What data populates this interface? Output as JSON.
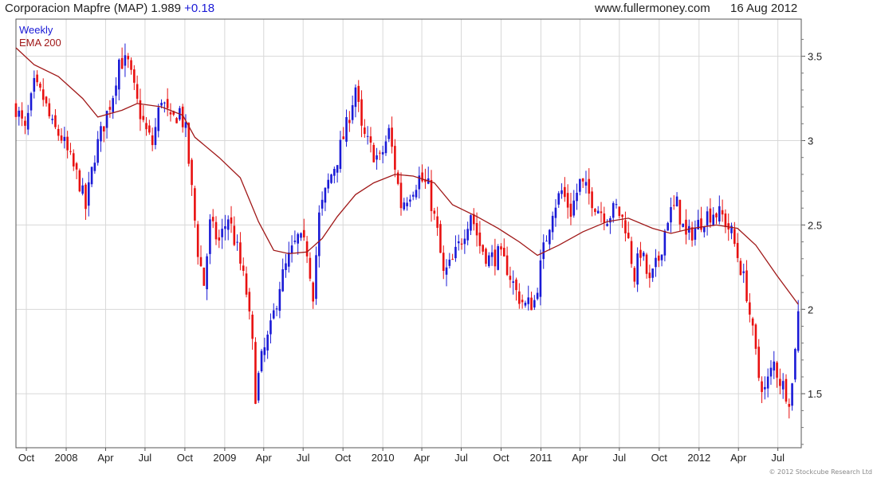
{
  "header": {
    "title": "Corporacion Mapfre (MAP) 1.989",
    "change": "+0.18",
    "site": "www.fullermoney.com",
    "date": "16 Aug 2012"
  },
  "footer": {
    "copyright": "© 2012 Stockcube Research Ltd"
  },
  "colors": {
    "up": "#1a1ad6",
    "down": "#e81010",
    "ema": "#a01818",
    "grid": "#d8d8d8"
  },
  "chart_data": {
    "type": "candlestick",
    "legend": [
      {
        "label": "Weekly",
        "color": "#1a1ad6"
      },
      {
        "label": "EMA 200",
        "color": "#a01818"
      }
    ],
    "ylim": [
      1.18,
      3.72
    ],
    "yticks": [
      1.5,
      2,
      2.5,
      3,
      3.5
    ],
    "ytick_labels": [
      "1.5",
      "2",
      "2.5",
      "3",
      "3.5"
    ],
    "x_range": [
      "2007-09-07",
      "2012-08-24"
    ],
    "xticks": [
      {
        "label": "Oct",
        "date": "2007-10-01"
      },
      {
        "label": "2008",
        "date": "2008-01-01"
      },
      {
        "label": "Apr",
        "date": "2008-04-01"
      },
      {
        "label": "Jul",
        "date": "2008-07-01"
      },
      {
        "label": "Oct",
        "date": "2008-10-01"
      },
      {
        "label": "2009",
        "date": "2009-01-01"
      },
      {
        "label": "Apr",
        "date": "2009-04-01"
      },
      {
        "label": "Jul",
        "date": "2009-07-01"
      },
      {
        "label": "Oct",
        "date": "2009-10-01"
      },
      {
        "label": "2010",
        "date": "2010-01-01"
      },
      {
        "label": "Apr",
        "date": "2010-04-01"
      },
      {
        "label": "Jul",
        "date": "2010-07-01"
      },
      {
        "label": "Oct",
        "date": "2010-10-01"
      },
      {
        "label": "2011",
        "date": "2011-01-01"
      },
      {
        "label": "Apr",
        "date": "2011-04-01"
      },
      {
        "label": "Jul",
        "date": "2011-07-01"
      },
      {
        "label": "Oct",
        "date": "2011-10-01"
      },
      {
        "label": "2012",
        "date": "2012-01-01"
      },
      {
        "label": "Apr",
        "date": "2012-04-01"
      },
      {
        "label": "Jul",
        "date": "2012-07-01"
      }
    ],
    "close_path": [
      [
        "2007-09-07",
        3.2
      ],
      [
        "2007-09-28",
        3.05
      ],
      [
        "2007-10-19",
        3.32
      ],
      [
        "2007-11-09",
        3.25
      ],
      [
        "2007-11-30",
        3.08
      ],
      [
        "2007-12-21",
        3.02
      ],
      [
        "2008-01-11",
        2.88
      ],
      [
        "2008-02-01",
        2.75
      ],
      [
        "2008-02-15",
        2.6
      ],
      [
        "2008-03-07",
        2.92
      ],
      [
        "2008-03-28",
        3.1
      ],
      [
        "2008-04-18",
        3.28
      ],
      [
        "2008-05-02",
        3.48
      ],
      [
        "2008-05-23",
        3.45
      ],
      [
        "2008-06-13",
        3.22
      ],
      [
        "2008-07-04",
        3.05
      ],
      [
        "2008-07-18",
        2.98
      ],
      [
        "2008-08-08",
        3.26
      ],
      [
        "2008-08-29",
        3.1
      ],
      [
        "2008-09-19",
        3.18
      ],
      [
        "2008-10-03",
        3.05
      ],
      [
        "2008-10-17",
        2.7
      ],
      [
        "2008-10-31",
        2.35
      ],
      [
        "2008-11-14",
        2.15
      ],
      [
        "2008-11-28",
        2.5
      ],
      [
        "2008-12-19",
        2.4
      ],
      [
        "2009-01-09",
        2.55
      ],
      [
        "2009-01-30",
        2.35
      ],
      [
        "2009-02-20",
        2.1
      ],
      [
        "2009-03-06",
        1.78
      ],
      [
        "2009-03-13",
        1.5
      ],
      [
        "2009-03-27",
        1.7
      ],
      [
        "2009-04-17",
        1.88
      ],
      [
        "2009-05-08",
        2.15
      ],
      [
        "2009-05-29",
        2.3
      ],
      [
        "2009-06-19",
        2.42
      ],
      [
        "2009-07-10",
        2.35
      ],
      [
        "2009-07-24",
        2.1
      ],
      [
        "2009-08-07",
        2.55
      ],
      [
        "2009-08-28",
        2.75
      ],
      [
        "2009-09-18",
        2.9
      ],
      [
        "2009-10-09",
        3.08
      ],
      [
        "2009-10-30",
        3.32
      ],
      [
        "2009-11-13",
        3.05
      ],
      [
        "2009-12-04",
        2.95
      ],
      [
        "2009-12-25",
        2.88
      ],
      [
        "2010-01-15",
        3.05
      ],
      [
        "2010-01-29",
        2.85
      ],
      [
        "2010-02-12",
        2.62
      ],
      [
        "2010-03-05",
        2.7
      ],
      [
        "2010-03-26",
        2.78
      ],
      [
        "2010-04-16",
        2.72
      ],
      [
        "2010-05-07",
        2.45
      ],
      [
        "2010-05-21",
        2.2
      ],
      [
        "2010-06-11",
        2.28
      ],
      [
        "2010-07-02",
        2.42
      ],
      [
        "2010-07-23",
        2.58
      ],
      [
        "2010-08-13",
        2.38
      ],
      [
        "2010-09-03",
        2.3
      ],
      [
        "2010-09-24",
        2.32
      ],
      [
        "2010-10-15",
        2.25
      ],
      [
        "2010-11-05",
        2.1
      ],
      [
        "2010-11-26",
        2.02
      ],
      [
        "2010-12-17",
        2.05
      ],
      [
        "2011-01-07",
        2.35
      ],
      [
        "2011-01-28",
        2.6
      ],
      [
        "2011-02-18",
        2.7
      ],
      [
        "2011-03-11",
        2.58
      ],
      [
        "2011-04-01",
        2.75
      ],
      [
        "2011-04-22",
        2.68
      ],
      [
        "2011-05-13",
        2.6
      ],
      [
        "2011-06-03",
        2.55
      ],
      [
        "2011-06-24",
        2.6
      ],
      [
        "2011-07-15",
        2.5
      ],
      [
        "2011-08-05",
        2.2
      ],
      [
        "2011-08-19",
        2.35
      ],
      [
        "2011-09-09",
        2.15
      ],
      [
        "2011-09-30",
        2.3
      ],
      [
        "2011-10-21",
        2.55
      ],
      [
        "2011-11-11",
        2.62
      ],
      [
        "2011-12-02",
        2.42
      ],
      [
        "2011-12-23",
        2.48
      ],
      [
        "2012-01-13",
        2.55
      ],
      [
        "2012-02-03",
        2.58
      ],
      [
        "2012-02-24",
        2.55
      ],
      [
        "2012-03-16",
        2.45
      ],
      [
        "2012-04-06",
        2.25
      ],
      [
        "2012-04-20",
        2.1
      ],
      [
        "2012-05-04",
        1.85
      ],
      [
        "2012-05-18",
        1.6
      ],
      [
        "2012-06-01",
        1.52
      ],
      [
        "2012-06-22",
        1.68
      ],
      [
        "2012-07-06",
        1.58
      ],
      [
        "2012-07-27",
        1.48
      ],
      [
        "2012-08-03",
        1.55
      ],
      [
        "2012-08-10",
        1.8
      ],
      [
        "2012-08-17",
        1.989
      ]
    ],
    "ema_200": [
      [
        "2007-09-07",
        3.55
      ],
      [
        "2007-10-19",
        3.45
      ],
      [
        "2007-12-14",
        3.38
      ],
      [
        "2008-02-08",
        3.25
      ],
      [
        "2008-03-14",
        3.14
      ],
      [
        "2008-05-09",
        3.18
      ],
      [
        "2008-06-13",
        3.22
      ],
      [
        "2008-08-08",
        3.2
      ],
      [
        "2008-09-26",
        3.15
      ],
      [
        "2008-10-24",
        3.02
      ],
      [
        "2008-12-19",
        2.9
      ],
      [
        "2009-02-06",
        2.78
      ],
      [
        "2009-03-20",
        2.52
      ],
      [
        "2009-04-24",
        2.35
      ],
      [
        "2009-05-29",
        2.33
      ],
      [
        "2009-07-10",
        2.34
      ],
      [
        "2009-08-14",
        2.42
      ],
      [
        "2009-09-18",
        2.55
      ],
      [
        "2009-10-30",
        2.68
      ],
      [
        "2009-12-11",
        2.75
      ],
      [
        "2010-01-29",
        2.8
      ],
      [
        "2010-03-12",
        2.79
      ],
      [
        "2010-04-30",
        2.75
      ],
      [
        "2010-06-11",
        2.62
      ],
      [
        "2010-08-06",
        2.55
      ],
      [
        "2010-09-24",
        2.48
      ],
      [
        "2010-11-12",
        2.4
      ],
      [
        "2010-12-24",
        2.32
      ],
      [
        "2011-02-11",
        2.38
      ],
      [
        "2011-04-08",
        2.46
      ],
      [
        "2011-06-03",
        2.52
      ],
      [
        "2011-07-22",
        2.54
      ],
      [
        "2011-09-16",
        2.48
      ],
      [
        "2011-10-28",
        2.45
      ],
      [
        "2011-12-16",
        2.48
      ],
      [
        "2012-02-10",
        2.5
      ],
      [
        "2012-03-30",
        2.48
      ],
      [
        "2012-05-11",
        2.38
      ],
      [
        "2012-06-29",
        2.2
      ],
      [
        "2012-08-17",
        2.03
      ]
    ]
  }
}
